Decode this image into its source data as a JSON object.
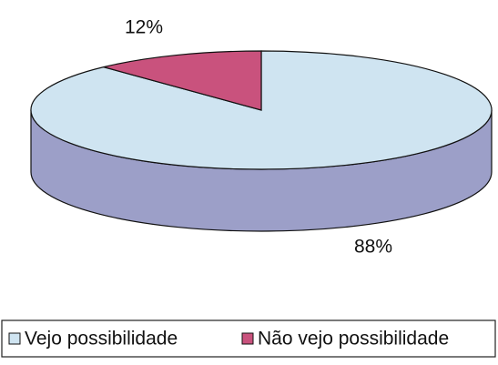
{
  "chart_data": {
    "type": "pie",
    "categories": [
      "Vejo possibilidade",
      "Não vejo possibilidade"
    ],
    "values": [
      88,
      12
    ],
    "value_labels": [
      "88%",
      "12%"
    ],
    "colors": [
      "#cfe4f1",
      "#c9527d"
    ],
    "side_colors": [
      "#9c9fc8",
      "#9a3a60"
    ],
    "legend": "bottom"
  }
}
